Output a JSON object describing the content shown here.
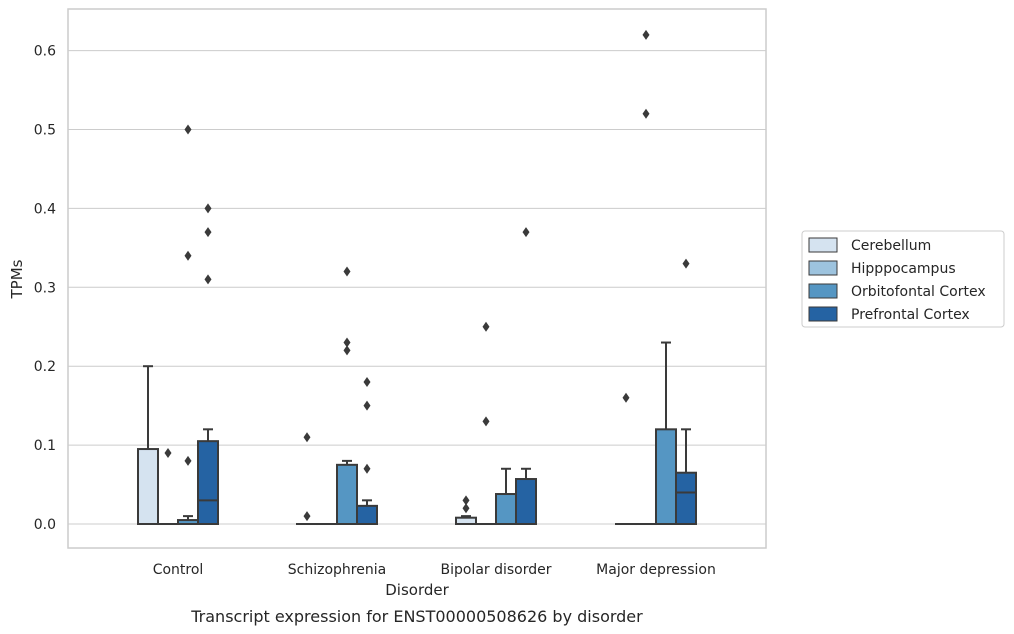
{
  "chart_data": {
    "type": "box",
    "caption": "Transcript expression for ENST00000508626 by disorder",
    "xlabel": "Disorder",
    "ylabel": "TPMs",
    "ylim": [
      -0.03,
      0.65
    ],
    "yticks": [
      "0.0",
      "0.1",
      "0.2",
      "0.3",
      "0.4",
      "0.5",
      "0.6"
    ],
    "grid": true,
    "legend_position": "right",
    "categories": [
      "Control",
      "Schizophrenia",
      "Bipolar disorder",
      "Major depression"
    ],
    "series": [
      {
        "name": "Cerebellum",
        "color": "#d5e3f0",
        "boxes": [
          {
            "q1": 0.0,
            "median": 0.0,
            "q3": 0.095,
            "whisker_low": 0.0,
            "whisker_high": 0.2,
            "outliers": []
          },
          {
            "q1": 0.0,
            "median": 0.0,
            "q3": 0.0,
            "whisker_low": 0.0,
            "whisker_high": 0.0,
            "outliers": [
              0.11,
              0.01
            ]
          },
          {
            "q1": 0.0,
            "median": 0.0,
            "q3": 0.008,
            "whisker_low": 0.0,
            "whisker_high": 0.01,
            "outliers": [
              0.03,
              0.02
            ]
          },
          {
            "q1": 0.0,
            "median": 0.0,
            "q3": 0.0,
            "whisker_low": 0.0,
            "whisker_high": 0.0,
            "outliers": [
              0.16
            ]
          }
        ]
      },
      {
        "name": "Hipppocampus",
        "color": "#9dc3de",
        "boxes": [
          {
            "q1": 0.0,
            "median": 0.0,
            "q3": 0.0,
            "whisker_low": 0.0,
            "whisker_high": 0.0,
            "outliers": [
              0.09
            ]
          },
          {
            "q1": 0.0,
            "median": 0.0,
            "q3": 0.0,
            "whisker_low": 0.0,
            "whisker_high": 0.0,
            "outliers": []
          },
          {
            "q1": 0.0,
            "median": 0.0,
            "q3": 0.0,
            "whisker_low": 0.0,
            "whisker_high": 0.0,
            "outliers": [
              0.25,
              0.13
            ]
          },
          {
            "q1": 0.0,
            "median": 0.0,
            "q3": 0.0,
            "whisker_low": 0.0,
            "whisker_high": 0.0,
            "outliers": [
              0.62,
              0.52
            ]
          }
        ]
      },
      {
        "name": "Orbitofontal Cortex",
        "color": "#5596c3",
        "boxes": [
          {
            "q1": 0.0,
            "median": 0.0,
            "q3": 0.005,
            "whisker_low": 0.0,
            "whisker_high": 0.01,
            "outliers": [
              0.5,
              0.34,
              0.08
            ]
          },
          {
            "q1": 0.0,
            "median": 0.0,
            "q3": 0.075,
            "whisker_low": 0.0,
            "whisker_high": 0.08,
            "outliers": [
              0.32,
              0.23,
              0.22
            ]
          },
          {
            "q1": 0.0,
            "median": 0.0,
            "q3": 0.038,
            "whisker_low": 0.0,
            "whisker_high": 0.07,
            "outliers": []
          },
          {
            "q1": 0.0,
            "median": 0.0,
            "q3": 0.12,
            "whisker_low": 0.0,
            "whisker_high": 0.23,
            "outliers": []
          }
        ]
      },
      {
        "name": "Prefrontal Cortex",
        "color": "#2563a3",
        "boxes": [
          {
            "q1": 0.0,
            "median": 0.03,
            "q3": 0.105,
            "whisker_low": 0.0,
            "whisker_high": 0.12,
            "outliers": [
              0.4,
              0.37,
              0.31
            ]
          },
          {
            "q1": 0.0,
            "median": 0.0,
            "q3": 0.023,
            "whisker_low": 0.0,
            "whisker_high": 0.03,
            "outliers": [
              0.18,
              0.15,
              0.07
            ]
          },
          {
            "q1": 0.0,
            "median": 0.0,
            "q3": 0.057,
            "whisker_low": 0.0,
            "whisker_high": 0.07,
            "outliers": [
              0.37
            ]
          },
          {
            "q1": 0.0,
            "median": 0.04,
            "q3": 0.065,
            "whisker_low": 0.0,
            "whisker_high": 0.12,
            "outliers": [
              0.33
            ]
          }
        ]
      }
    ]
  }
}
